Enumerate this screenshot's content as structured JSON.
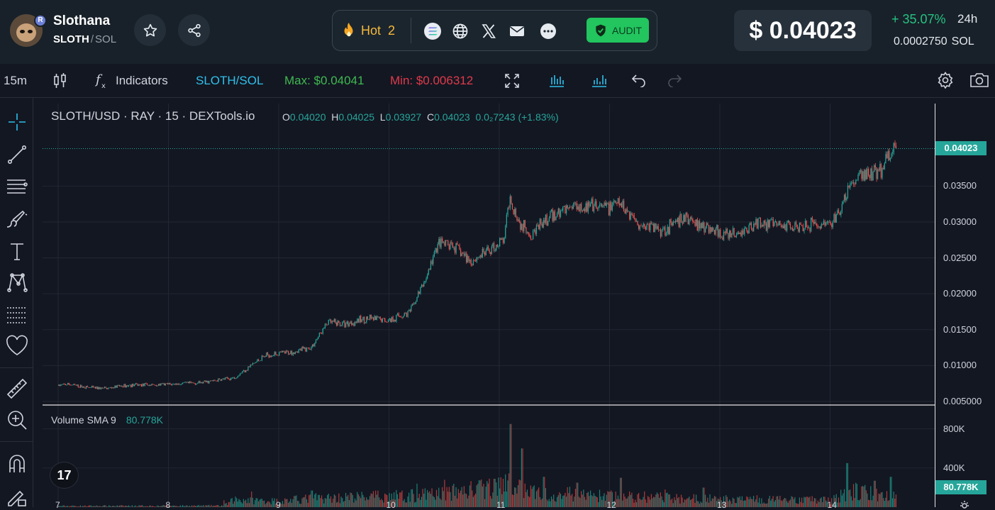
{
  "token": {
    "name": "Slothana",
    "symbol": "SLOTH",
    "quote": "SOL",
    "badge": "R"
  },
  "center": {
    "hot_label": "Hot",
    "hot_count": "2",
    "audit_label": "AUDIT"
  },
  "price": {
    "usd": "$ 0.04023",
    "change": "+ 35.07%",
    "period": "24h",
    "sol_value": "0.0002750",
    "sol_unit": "SOL"
  },
  "toolbar": {
    "interval": "15m",
    "indicators": "Indicators",
    "pair": "SLOTH/SOL",
    "max": "Max: $0.04041",
    "min": "Min: $0.006312",
    "max_color": "#3fb950",
    "min_color": "#e03a4a"
  },
  "chart_legend": {
    "title": "SLOTH/USD · RAY · 15 · DEXTools.io",
    "o_label": "O",
    "o": "0.04020",
    "h_label": "H",
    "h": "0.04025",
    "l_label": "L",
    "l": "0.03927",
    "c_label": "C",
    "c": "0.04023",
    "vol": "0.0₂7243",
    "pct": "(+1.83%)",
    "volume_label": "Volume SMA 9",
    "volume_value": "80.778K"
  },
  "price_tag": "0.04023",
  "volume_tag": "80.778K",
  "tv_logo": "17",
  "chart_data": {
    "type": "candlestick",
    "title": "SLOTH/USD · RAY · 15 · DEXTools.io",
    "x_ticks": [
      "7",
      "8",
      "9",
      "10",
      "11",
      "12",
      "13",
      "14"
    ],
    "y_ticks": [
      "0.005000",
      "0.01000",
      "0.01500",
      "0.02000",
      "0.02500",
      "0.03000",
      "0.03500"
    ],
    "y_tick_values": [
      0.005,
      0.01,
      0.015,
      0.02,
      0.025,
      0.03,
      0.035
    ],
    "ylim": [
      0.0045,
      0.0465
    ],
    "volume_ticks": [
      "800K",
      "400K"
    ],
    "volume_tick_values": [
      800000,
      400000
    ],
    "volume_ylim": [
      0,
      1000000
    ],
    "price_path": [
      [
        0,
        0.0072
      ],
      [
        0.1,
        0.0074
      ],
      [
        0.2,
        0.0071
      ],
      [
        0.3,
        0.0069
      ],
      [
        0.45,
        0.0068
      ],
      [
        0.55,
        0.0071
      ],
      [
        0.7,
        0.0073
      ],
      [
        0.9,
        0.0073
      ],
      [
        1.3,
        0.0076
      ],
      [
        1.6,
        0.0083
      ],
      [
        1.8,
        0.0105
      ],
      [
        1.9,
        0.0115
      ],
      [
        2.1,
        0.0118
      ],
      [
        2.3,
        0.0125
      ],
      [
        2.45,
        0.016
      ],
      [
        2.6,
        0.0158
      ],
      [
        2.8,
        0.0165
      ],
      [
        3.0,
        0.0163
      ],
      [
        3.2,
        0.0175
      ],
      [
        3.35,
        0.0225
      ],
      [
        3.45,
        0.027
      ],
      [
        3.6,
        0.0265
      ],
      [
        3.75,
        0.0245
      ],
      [
        3.9,
        0.026
      ],
      [
        4.05,
        0.0275
      ],
      [
        4.1,
        0.0335
      ],
      [
        4.2,
        0.0295
      ],
      [
        4.3,
        0.0285
      ],
      [
        4.5,
        0.031
      ],
      [
        4.7,
        0.0325
      ],
      [
        4.9,
        0.0318
      ],
      [
        5.1,
        0.0325
      ],
      [
        5.3,
        0.0295
      ],
      [
        5.5,
        0.029
      ],
      [
        5.7,
        0.0305
      ],
      [
        5.85,
        0.0295
      ],
      [
        6.05,
        0.028
      ],
      [
        6.2,
        0.0285
      ],
      [
        6.35,
        0.03
      ],
      [
        6.55,
        0.0295
      ],
      [
        6.8,
        0.0298
      ],
      [
        7.0,
        0.0295
      ],
      [
        7.1,
        0.0315
      ],
      [
        7.2,
        0.0355
      ],
      [
        7.3,
        0.0365
      ],
      [
        7.45,
        0.037
      ],
      [
        7.55,
        0.0395
      ],
      [
        7.6,
        0.0402
      ]
    ],
    "volume_profile": [
      [
        0,
        12000
      ],
      [
        1.5,
        15000
      ],
      [
        1.6,
        80000
      ],
      [
        2.0,
        60000
      ],
      [
        2.3,
        90000
      ],
      [
        3.3,
        120000
      ],
      [
        3.5,
        140000
      ],
      [
        4.1,
        220000
      ],
      [
        4.3,
        150000
      ],
      [
        5.0,
        110000
      ],
      [
        6.0,
        80000
      ],
      [
        7.0,
        70000
      ],
      [
        7.2,
        160000
      ],
      [
        7.6,
        100000
      ]
    ],
    "volume_spikes": [
      [
        1.5,
        70000
      ],
      [
        1.75,
        160000
      ],
      [
        2.3,
        170000
      ],
      [
        3.1,
        150000
      ],
      [
        3.25,
        240000
      ],
      [
        3.5,
        280000
      ],
      [
        3.95,
        290000
      ],
      [
        4.1,
        850000
      ],
      [
        4.2,
        600000
      ],
      [
        4.4,
        310000
      ],
      [
        4.7,
        250000
      ],
      [
        5.1,
        300000
      ],
      [
        5.5,
        180000
      ],
      [
        5.85,
        200000
      ],
      [
        7.15,
        450000
      ],
      [
        7.4,
        270000
      ],
      [
        7.55,
        310000
      ]
    ],
    "last_price": 0.04023
  }
}
